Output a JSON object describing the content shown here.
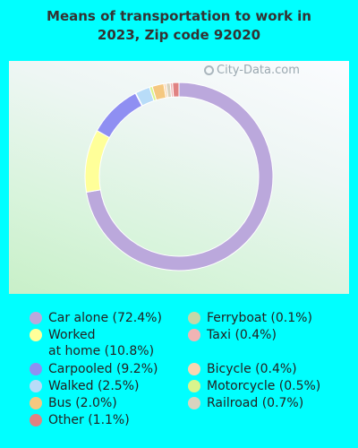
{
  "title_line1": "Means of transportation to work in",
  "title_line2": "2023, Zip code 92020",
  "watermark": "City-Data.com",
  "chart_data": {
    "type": "pie",
    "title": "Means of transportation to work in 2023, Zip code 92020",
    "slices": [
      {
        "name": "Car alone",
        "value": 72.4,
        "color": "#bba8dc",
        "label": "Car alone (72.4%)"
      },
      {
        "name": "Worked at home",
        "value": 10.8,
        "color": "#ffff99",
        "label": "Worked\nat home (10.8%)"
      },
      {
        "name": "Carpooled",
        "value": 9.2,
        "color": "#8f8ff2",
        "label": "Carpooled (9.2%)"
      },
      {
        "name": "Ferryboat",
        "value": 0.1,
        "color": "#c4d8a8",
        "label": "Ferryboat (0.1%)"
      },
      {
        "name": "Walked",
        "value": 2.5,
        "color": "#b8dcf8",
        "label": "Walked (2.5%)"
      },
      {
        "name": "Motorcycle",
        "value": 0.5,
        "color": "#d9f58c",
        "label": "Motorcycle (0.5%)"
      },
      {
        "name": "Bus",
        "value": 2.0,
        "color": "#f5c880",
        "label": "Bus (2.0%)"
      },
      {
        "name": "Bicycle",
        "value": 0.4,
        "color": "#f8d6b0",
        "label": "Bicycle (0.4%)"
      },
      {
        "name": "Railroad",
        "value": 0.7,
        "color": "#d9d3bf",
        "label": "Railroad (0.7%)"
      },
      {
        "name": "Taxi",
        "value": 0.4,
        "color": "#f0b4b4",
        "label": "Taxi (0.4%)"
      },
      {
        "name": "Other",
        "value": 1.1,
        "color": "#e08282",
        "label": "Other (1.1%)"
      }
    ],
    "legend_order": [
      "Car alone",
      "Worked at home",
      "Carpooled",
      "Walked",
      "Bus",
      "Other",
      "Ferryboat",
      "Taxi",
      "Bicycle",
      "Motorcycle",
      "Railroad"
    ]
  }
}
